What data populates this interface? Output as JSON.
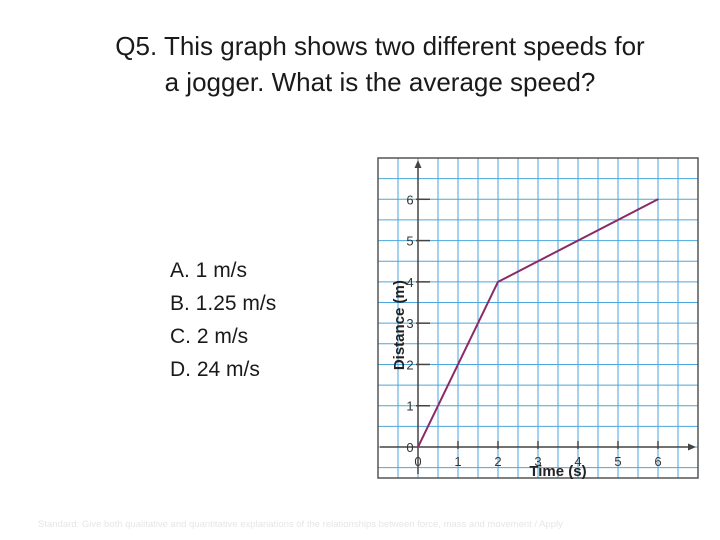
{
  "question": {
    "line1": "Q5. This graph shows two different speeds for",
    "line2": "a jogger. What is the average speed?"
  },
  "choices": [
    "A. 1 m/s",
    "B. 1.25 m/s",
    "C. 2 m/s",
    "D. 24 m/s"
  ],
  "footer": "Standard: Give both qualitative and quantitative explanations of the relationships between force, mass and movement / Apply",
  "chart_data": {
    "type": "line",
    "xlabel": "Time (s)",
    "ylabel": "Distance (m)",
    "x_ticks": [
      "0",
      "1",
      "2",
      "3",
      "4",
      "5",
      "6"
    ],
    "y_ticks": [
      "0",
      "1",
      "2",
      "3",
      "4",
      "5",
      "6"
    ],
    "xlim": [
      -1,
      7
    ],
    "ylim": [
      -0.75,
      7
    ],
    "grid": true,
    "series": [
      {
        "x": [
          0,
          2,
          6
        ],
        "y": [
          0,
          4,
          6
        ],
        "color": "#8b2a66"
      }
    ],
    "colors": {
      "grid": "#4aa6dc",
      "axis": "#444444",
      "frame": "#555555"
    }
  }
}
